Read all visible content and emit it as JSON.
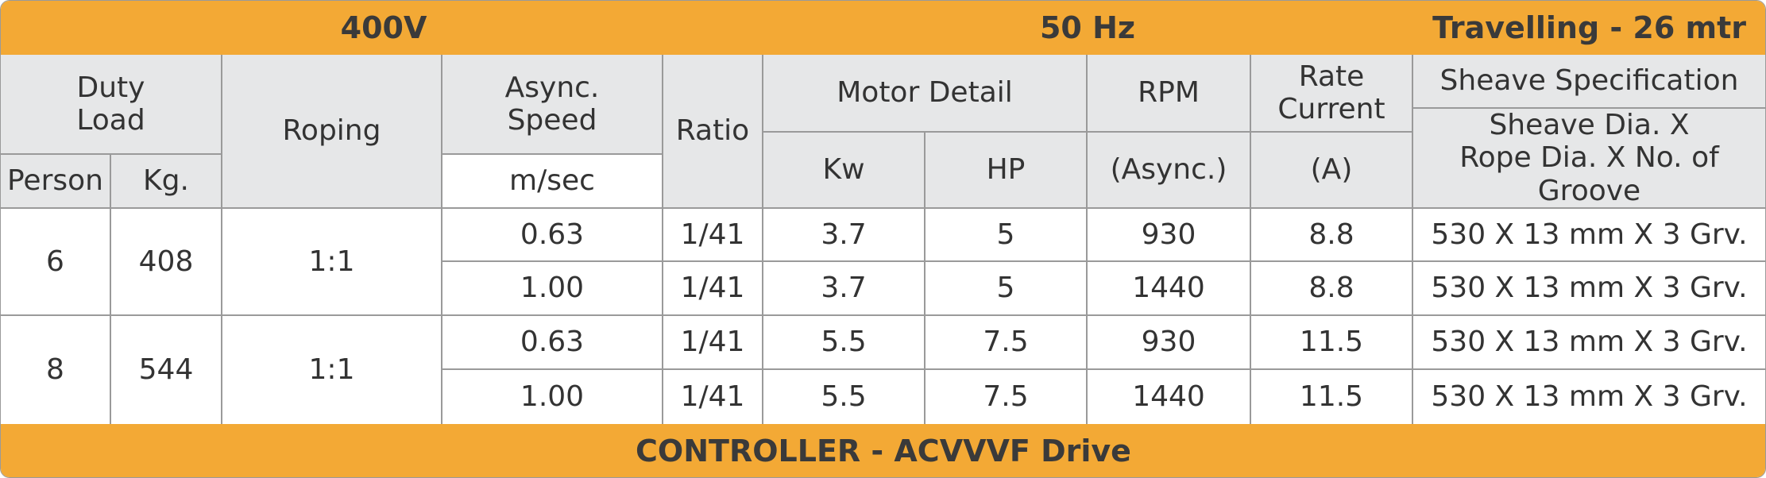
{
  "banner": {
    "voltage": "400V",
    "frequency": "50 Hz",
    "travel": "Travelling - 26 mtr"
  },
  "table": {
    "headers": {
      "duty_load": "Duty\nLoad",
      "person": "Person",
      "kg": "Kg.",
      "roping": "Roping",
      "async_speed": "Async.\nSpeed",
      "speed_unit": "m/sec",
      "ratio": "Ratio",
      "motor_detail": "Motor Detail",
      "kw": "Kw",
      "hp": "HP",
      "rpm": "RPM",
      "rpm_unit": "(Async.)",
      "rate_current": "Rate\nCurrent",
      "current_unit": "(A)",
      "sheave": "Sheave Specification",
      "sheave_detail": "Sheave Dia. X\nRope Dia. X No. of Groove"
    },
    "groups": [
      {
        "person": "6",
        "kg": "408",
        "roping": "1:1",
        "rows": [
          [
            "0.63",
            "1/41",
            "3.7",
            "5",
            "930",
            "8.8",
            "530 X 13 mm X 3 Grv."
          ],
          [
            "1.00",
            "1/41",
            "3.7",
            "5",
            "1440",
            "8.8",
            "530 X 13 mm X 3 Grv."
          ]
        ]
      },
      {
        "person": "8",
        "kg": "544",
        "roping": "1:1",
        "rows": [
          [
            "0.63",
            "1/41",
            "5.5",
            "7.5",
            "930",
            "11.5",
            "530 X 13 mm X 3 Grv."
          ],
          [
            "1.00",
            "1/41",
            "5.5",
            "7.5",
            "1440",
            "11.5",
            "530 X 13 mm X 3 Grv."
          ]
        ]
      }
    ]
  },
  "footer": "CONTROLLER - ACVVVF Drive"
}
